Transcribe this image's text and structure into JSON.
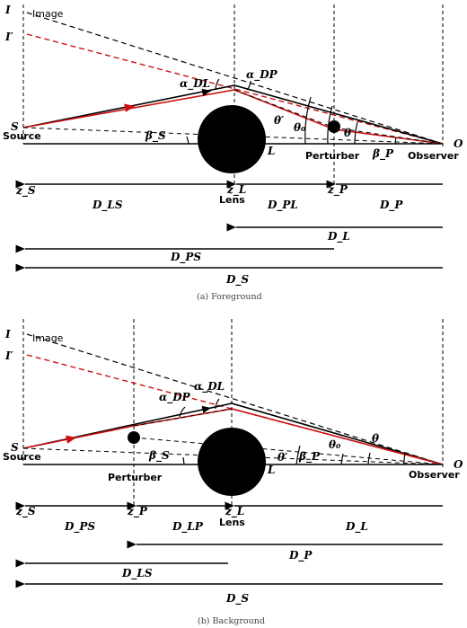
{
  "panel_a": {
    "caption": "(a) Foreground",
    "labels": {
      "I": "I",
      "I_prime": "I′",
      "image": "Image",
      "S": "S",
      "source": "Source",
      "O": "O",
      "observer": "Observer",
      "L": "L",
      "lens": "Lens",
      "perturber": "Perturber",
      "alpha_DL": "α_DL",
      "alpha_DP": "α_DP",
      "beta_S": "β_S",
      "beta_P": "β_P",
      "theta_prime": "θ′",
      "theta_0": "θ₀",
      "theta": "θ",
      "z_S": "z_S",
      "z_L": "z_L",
      "z_P": "z_P",
      "D_LS": "D_LS",
      "D_PL": "D_PL",
      "D_P": "D_P",
      "D_L": "D_L",
      "D_PS": "D_PS",
      "D_S": "D_S"
    }
  },
  "panel_b": {
    "caption": "(b) Background",
    "labels": {
      "I": "I",
      "I_prime": "I′",
      "image": "Image",
      "S": "S",
      "source": "Source",
      "O": "O",
      "observer": "Observer",
      "L": "L",
      "lens": "Lens",
      "perturber": "Perturber",
      "alpha_DL": "α_DL",
      "alpha_DP": "α_DP",
      "beta_S": "β_S",
      "beta_P": "β_P",
      "theta_prime": "θ′",
      "theta_0": "θ₀",
      "theta": "θ",
      "z_S": "z_S",
      "z_P": "z_P",
      "z_L": "z_L",
      "D_PS": "D_PS",
      "D_LP": "D_LP",
      "D_L": "D_L",
      "D_P": "D_P",
      "D_LS": "D_LS",
      "D_S": "D_S"
    }
  },
  "colors": {
    "ray": "#cc1111",
    "line": "#000000"
  }
}
